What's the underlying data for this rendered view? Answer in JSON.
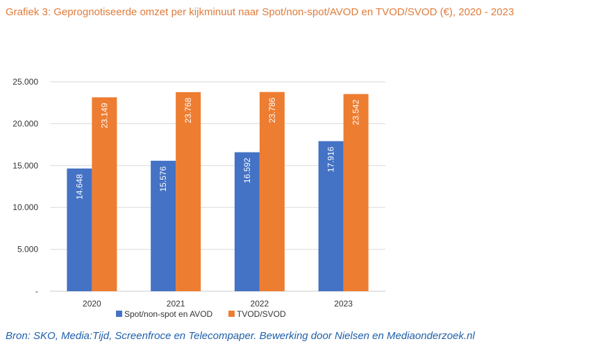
{
  "chart_data": {
    "type": "bar",
    "title": "Grafiek 3: Geprognotiseerde omzet per kijkminuut naar Spot/non-spot/AVOD en TVOD/SVOD (€), 2020 - 2023",
    "categories": [
      "2020",
      "2021",
      "2022",
      "2023"
    ],
    "series": [
      {
        "name": "Spot/non-spot en AVOD",
        "color": "#4472c4",
        "values": [
          14648,
          15576,
          16592,
          17916
        ],
        "labels": [
          "14.648",
          "15.576",
          "16.592",
          "17.916"
        ]
      },
      {
        "name": "TVOD/SVOD",
        "color": "#ed7d31",
        "values": [
          23149,
          23768,
          23786,
          23542
        ],
        "labels": [
          "23.149",
          "23.768",
          "23.786",
          "23.542"
        ]
      }
    ],
    "yticks": [
      0,
      5000,
      10000,
      15000,
      20000,
      25000
    ],
    "ytick_labels": [
      "-",
      "5.000",
      "10.000",
      "15.000",
      "20.000",
      "25.000"
    ],
    "ylim": [
      0,
      25000
    ],
    "grid": true,
    "legend": "bottom",
    "xlabel": "",
    "ylabel": ""
  },
  "source": "Bron: SKO, Media:Tijd, Screenfroce en Telecompaper. Bewerking door Nielsen en Mediaonderzoek.nl"
}
